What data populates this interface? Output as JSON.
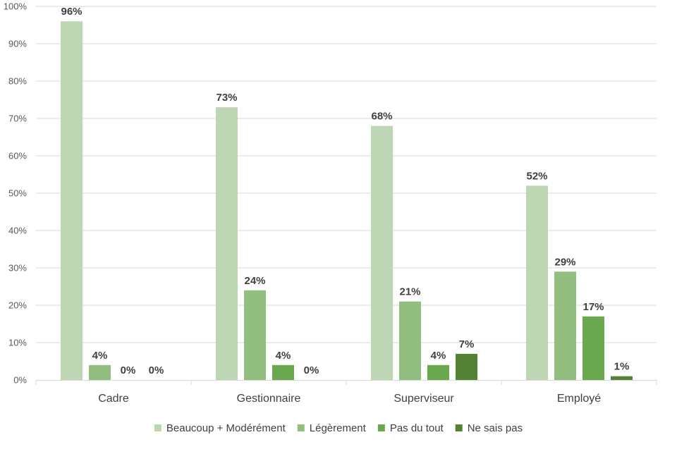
{
  "chart_data": {
    "type": "bar",
    "categories": [
      "Cadre",
      "Gestionnaire",
      "Superviseur",
      "Employé"
    ],
    "series": [
      {
        "name": "Beaucoup + Modérément",
        "values": [
          96,
          73,
          68,
          52
        ],
        "labels": [
          "96%",
          "73%",
          "68%",
          "52%"
        ],
        "color": "#bdd7b5"
      },
      {
        "name": "Légèrement",
        "values": [
          4,
          24,
          21,
          29
        ],
        "labels": [
          "4%",
          "24%",
          "21%",
          "29%"
        ],
        "color": "#92bf7f"
      },
      {
        "name": "Pas du tout",
        "values": [
          0,
          4,
          4,
          17
        ],
        "labels": [
          "0%",
          "4%",
          "4%",
          "17%"
        ],
        "color": "#6aa84f"
      },
      {
        "name": "Ne sais pas",
        "values": [
          null,
          0,
          7,
          1
        ],
        "labels": [
          "0%",
          "0%",
          "7%",
          "1%"
        ],
        "color": "#548235"
      }
    ],
    "ylim": [
      0,
      100
    ],
    "yticks": [
      "0%",
      "10%",
      "20%",
      "30%",
      "40%",
      "50%",
      "60%",
      "70%",
      "80%",
      "90%",
      "100%"
    ],
    "grid": true,
    "legend": "bottom",
    "title": "",
    "xlabel": "",
    "ylabel": ""
  }
}
